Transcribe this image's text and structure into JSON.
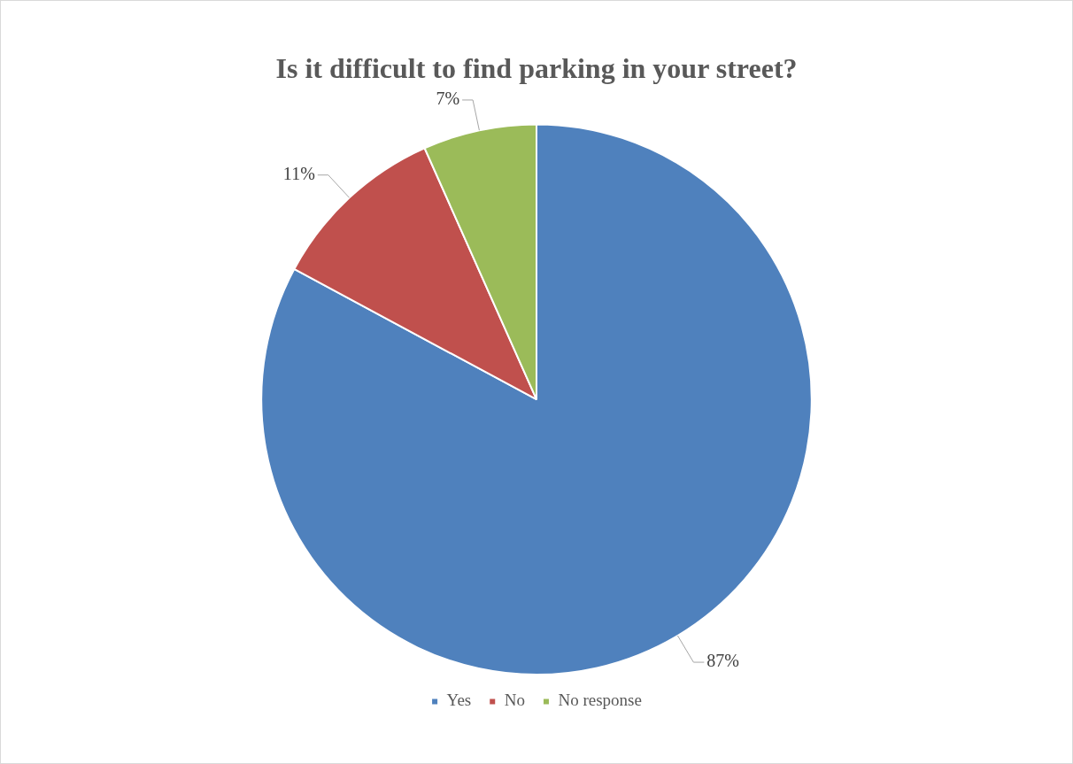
{
  "chart_data": {
    "type": "pie",
    "title": "Is it difficult to find parking in your street?",
    "categories": [
      "Yes",
      "No",
      "No response"
    ],
    "values": [
      87,
      11,
      7
    ],
    "colors": [
      "#4f81bd",
      "#c0504d",
      "#9bbb59"
    ],
    "value_labels": [
      "87%",
      "11%",
      "7%"
    ],
    "legend": "bottom"
  }
}
